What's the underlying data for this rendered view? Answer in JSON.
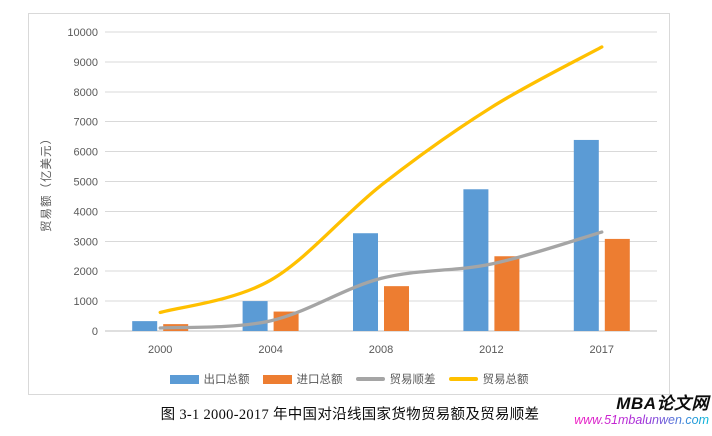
{
  "page": {
    "caption": "图 3-1 2000-2017 年中国对沿线国家货物贸易额及贸易顺差",
    "watermark": {
      "title": "MBA论文网",
      "url": "www.51mbalunwen.com",
      "title_color": "#0d0d0d",
      "url_gradient": [
        "#f21ec4",
        "#a32bd9",
        "#00b8d8"
      ]
    }
  },
  "chart_data": {
    "type": "bar",
    "subtype": "bar-line-combo",
    "title": "",
    "xlabel": "",
    "ylabel": "贸易额（亿美元）",
    "categories": [
      "2000",
      "2004",
      "2008",
      "2012",
      "2017"
    ],
    "ylim": [
      0,
      10000
    ],
    "yticks": [
      0,
      1000,
      2000,
      3000,
      4000,
      5000,
      6000,
      7000,
      8000,
      9000,
      10000
    ],
    "grid": true,
    "legend_position": "bottom",
    "series": [
      {
        "name": "出口总额",
        "type": "bar",
        "color": "#5B9BD5",
        "values": [
          330,
          1000,
          3270,
          4740,
          6390
        ]
      },
      {
        "name": "进口总额",
        "type": "bar",
        "color": "#ED7D31",
        "values": [
          230,
          650,
          1500,
          2500,
          3080
        ]
      },
      {
        "name": "贸易顺差",
        "type": "line",
        "color": "#A5A5A5",
        "values": [
          100,
          340,
          1760,
          2240,
          3310
        ]
      },
      {
        "name": "贸易总额",
        "type": "line",
        "color": "#FFC000",
        "values": [
          620,
          1700,
          4870,
          7480,
          9500
        ]
      }
    ],
    "colors": {
      "grid": "#D9D9D9",
      "axis_line": "#BFBFBF",
      "tick_label": "#595959",
      "frame_border": "#D9D9D9"
    }
  }
}
